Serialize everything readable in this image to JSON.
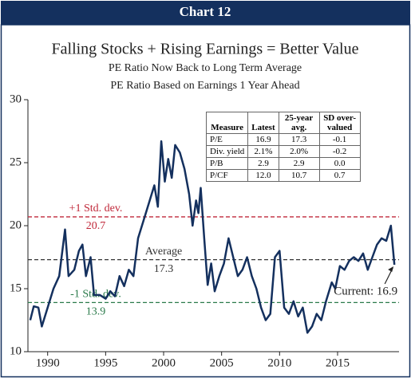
{
  "chart_data": {
    "type": "line",
    "header": "Chart 12",
    "title": "Falling Stocks + Rising Earnings = Better Value",
    "subtitles": [
      "PE Ratio Now Back to Long Term Average",
      "PE Ratio Based on Earnings 1 Year Ahead"
    ],
    "color": "#14305e",
    "x": [
      1988.5,
      1988.8,
      1989.2,
      1989.5,
      1990.0,
      1990.5,
      1991.0,
      1991.5,
      1991.8,
      1992.3,
      1992.7,
      1993.0,
      1993.3,
      1993.7,
      1994.0,
      1994.5,
      1995.0,
      1995.4,
      1995.8,
      1996.2,
      1996.6,
      1997.0,
      1997.4,
      1997.8,
      1998.3,
      1998.8,
      1999.2,
      1999.5,
      1999.8,
      2000.1,
      2000.4,
      2000.7,
      2001.0,
      2001.4,
      2001.8,
      2002.2,
      2002.5,
      2002.8,
      2003.0,
      2003.2,
      2003.5,
      2003.8,
      2004.1,
      2004.4,
      2004.8,
      2005.2,
      2005.6,
      2006.0,
      2006.4,
      2006.8,
      2007.2,
      2007.6,
      2008.0,
      2008.4,
      2008.8,
      2009.2,
      2009.6,
      2010.0,
      2010.4,
      2010.8,
      2011.2,
      2011.6,
      2012.0,
      2012.4,
      2012.8,
      2013.2,
      2013.6,
      2014.0,
      2014.5,
      2014.8,
      2015.2,
      2015.6,
      2016.0,
      2016.4,
      2016.8,
      2017.2,
      2017.6,
      2018.0,
      2018.4,
      2018.8,
      2019.2,
      2019.6,
      2019.9
    ],
    "values": [
      12.5,
      13.6,
      13.5,
      12.0,
      13.5,
      15.0,
      16.0,
      19.7,
      16.0,
      16.5,
      18.0,
      18.5,
      16.0,
      17.5,
      14.5,
      14.5,
      14.2,
      14.8,
      14.4,
      16.0,
      15.2,
      16.5,
      16.0,
      19.0,
      20.5,
      22.0,
      23.2,
      21.5,
      26.7,
      23.5,
      25.3,
      23.8,
      26.4,
      25.8,
      24.5,
      22.5,
      20.0,
      22.0,
      21.0,
      23.0,
      19.0,
      15.3,
      17.0,
      14.8,
      16.0,
      17.0,
      19.0,
      17.5,
      16.0,
      16.5,
      17.5,
      16.0,
      15.0,
      13.5,
      12.5,
      13.0,
      17.5,
      18.0,
      13.5,
      13.0,
      14.0,
      12.8,
      13.5,
      11.5,
      12.0,
      13.0,
      12.5,
      14.0,
      15.5,
      15.0,
      16.8,
      16.5,
      17.2,
      17.5,
      17.2,
      17.8,
      16.5,
      17.5,
      18.5,
      19.0,
      18.8,
      20.0,
      16.9
    ],
    "xlim": [
      1988.3,
      2020.3
    ],
    "xticks": [
      1990,
      1995,
      2000,
      2005,
      2010,
      2015
    ],
    "ylim": [
      10,
      30
    ],
    "yticks": [
      10,
      15,
      20,
      25,
      30
    ],
    "reference_lines": [
      {
        "label": "+1 Std. dev.",
        "value": 20.7,
        "color": "#c0283a"
      },
      {
        "label": "Average",
        "value": 17.3,
        "color": "#333333"
      },
      {
        "label": "-1 Std. dev.",
        "value": 13.9,
        "color": "#2a7a4a"
      }
    ],
    "annotation": "Current: 16.9",
    "table": {
      "columns": [
        "Measure",
        "Latest",
        "25-year avg.",
        "SD over-valued"
      ],
      "rows": [
        [
          "P/E",
          "16.9",
          "17.3",
          "-0.1"
        ],
        [
          "Div. yield",
          "2.1%",
          "2.0%",
          "-0.2"
        ],
        [
          "P/B",
          "2.9",
          "2.9",
          "0.0"
        ],
        [
          "P/CF",
          "12.0",
          "10.7",
          "0.7"
        ]
      ]
    }
  }
}
